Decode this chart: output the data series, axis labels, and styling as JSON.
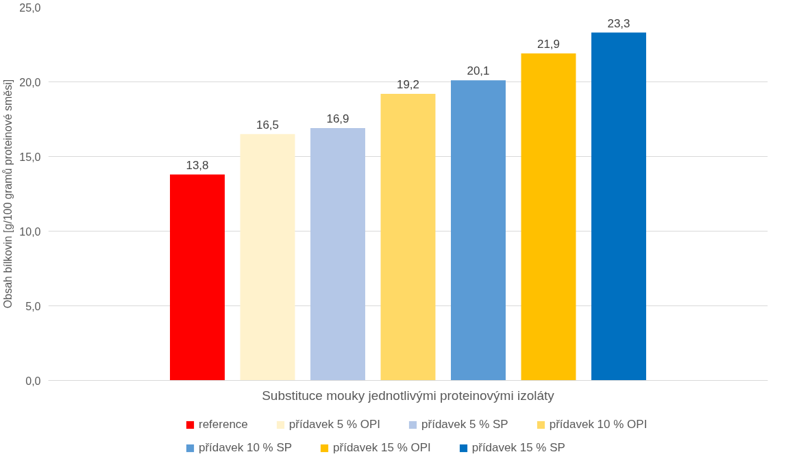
{
  "chart_data": {
    "type": "bar",
    "xlabel": "Substituce mouky jednotlivými proteinovými izoláty",
    "ylabel": "Obsah bílkovin [g/100 gramů proteinové směsi]",
    "categories": [
      null
    ],
    "series": [
      {
        "name": "reference",
        "color": "#ff0000",
        "values": [
          13.8
        ],
        "value_labels": [
          "13,8"
        ]
      },
      {
        "name": "přídavek 5 % OPI",
        "color": "#fff2cc",
        "values": [
          16.5
        ],
        "value_labels": [
          "16,5"
        ]
      },
      {
        "name": "přídavek 5 % SP",
        "color": "#b4c7e7",
        "values": [
          16.9
        ],
        "value_labels": [
          "16,9"
        ]
      },
      {
        "name": "přídavek 10 % OPI",
        "color": "#ffd966",
        "values": [
          19.2
        ],
        "value_labels": [
          "19,2"
        ]
      },
      {
        "name": "přídavek 10 % SP",
        "color": "#5b9bd5",
        "values": [
          20.1
        ],
        "value_labels": [
          "20,1"
        ]
      },
      {
        "name": "přídavek 15 % OPI",
        "color": "#ffc000",
        "values": [
          21.9
        ],
        "value_labels": [
          "21,9"
        ]
      },
      {
        "name": "přídavek 15 % SP",
        "color": "#0070c0",
        "values": [
          23.3
        ],
        "value_labels": [
          "23,3"
        ]
      }
    ],
    "ylim": [
      0,
      25
    ],
    "yticks": [
      {
        "value": 0,
        "label": "0,0"
      },
      {
        "value": 5,
        "label": "5,0"
      },
      {
        "value": 10,
        "label": "10,0"
      },
      {
        "value": 15,
        "label": "15,0"
      },
      {
        "value": 20,
        "label": "20,0"
      },
      {
        "value": 25,
        "label": "25,0"
      }
    ],
    "grid": "y",
    "legend": "bottom",
    "tick_labels": "y"
  }
}
